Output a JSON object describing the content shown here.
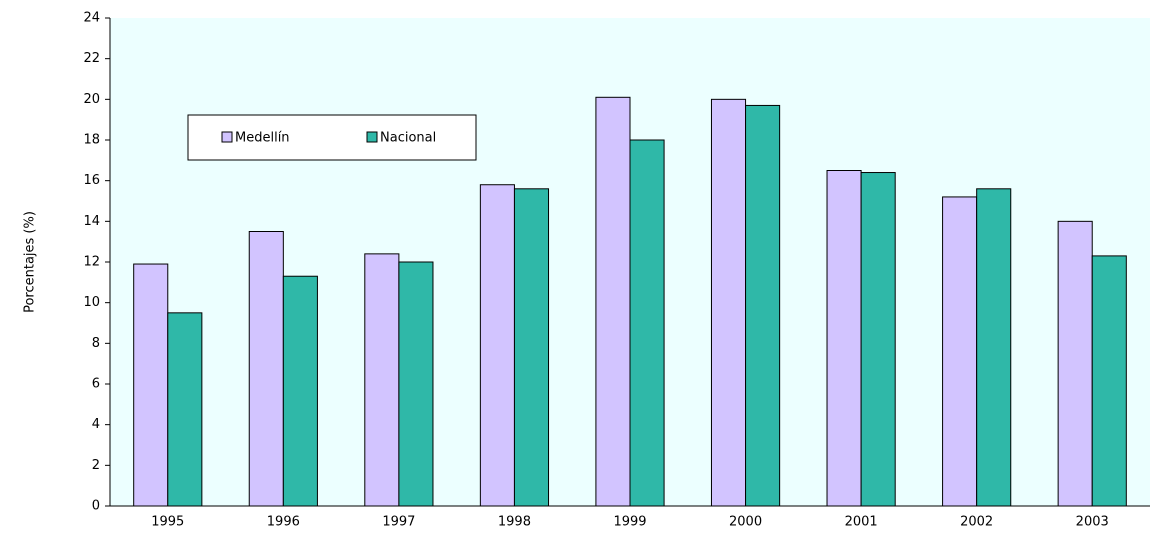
{
  "chart_data": {
    "type": "bar",
    "ylabel": "Porcentajes (%)",
    "categories": [
      "1995",
      "1996",
      "1997",
      "1998",
      "1999",
      "2000",
      "2001",
      "2002",
      "2003"
    ],
    "series": [
      {
        "name": "Medellín",
        "color": "#d2c4ff",
        "values": [
          11.9,
          13.5,
          12.4,
          15.8,
          20.1,
          20.0,
          16.5,
          15.2,
          14.0
        ]
      },
      {
        "name": "Nacional",
        "color": "#2fb8a8",
        "values": [
          9.5,
          11.3,
          12.0,
          15.6,
          18.0,
          19.7,
          16.4,
          15.6,
          12.3
        ]
      }
    ],
    "ylim": [
      0,
      24
    ],
    "yticks": [
      0,
      2,
      4,
      6,
      8,
      10,
      12,
      14,
      16,
      18,
      20,
      22,
      24
    ],
    "grid": false
  }
}
